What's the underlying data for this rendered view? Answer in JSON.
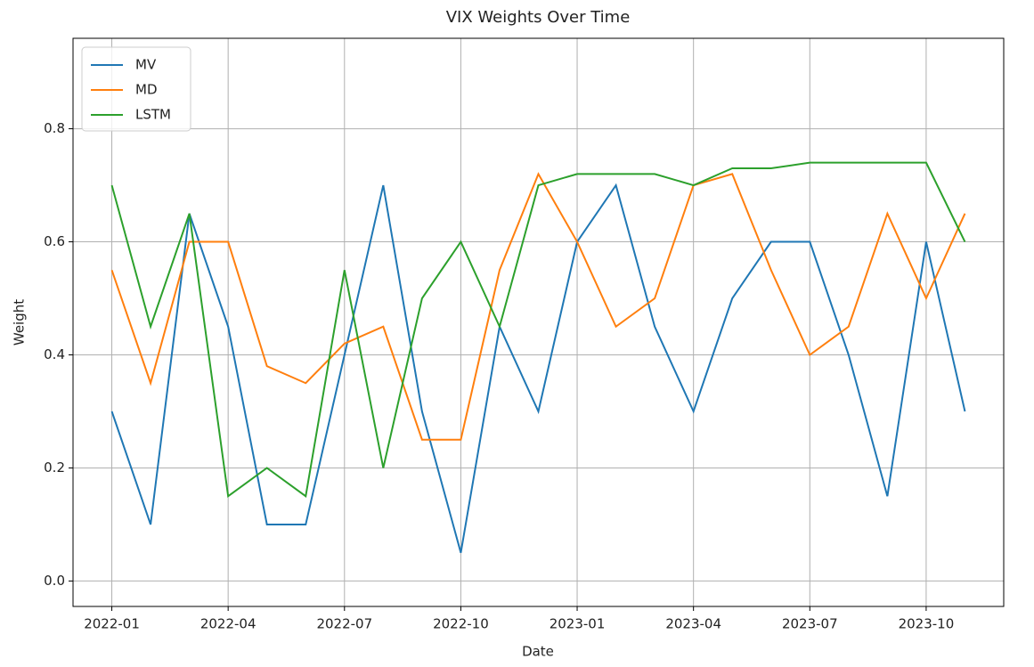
{
  "chart_data": {
    "type": "line",
    "title": "VIX Weights Over Time",
    "xlabel": "Date",
    "ylabel": "Weight",
    "x": [
      "2022-01",
      "2022-02",
      "2022-03",
      "2022-04",
      "2022-05",
      "2022-06",
      "2022-07",
      "2022-08",
      "2022-09",
      "2022-10",
      "2022-11",
      "2022-12",
      "2023-01",
      "2023-02",
      "2023-03",
      "2023-04",
      "2023-05",
      "2023-06",
      "2023-07",
      "2023-08",
      "2023-09",
      "2023-10",
      "2023-11"
    ],
    "series": [
      {
        "name": "MV",
        "color": "#1f77b4",
        "values": [
          0.3,
          0.1,
          0.65,
          0.45,
          0.1,
          0.1,
          0.4,
          0.7,
          0.3,
          0.05,
          0.45,
          0.3,
          0.6,
          0.7,
          0.45,
          0.3,
          0.5,
          0.6,
          0.6,
          0.4,
          0.15,
          0.6,
          0.3
        ]
      },
      {
        "name": "MD",
        "color": "#ff7f0e",
        "values": [
          0.55,
          0.35,
          0.6,
          0.6,
          0.38,
          0.35,
          0.42,
          0.45,
          0.25,
          0.25,
          0.55,
          0.72,
          0.6,
          0.45,
          0.5,
          0.7,
          0.72,
          0.55,
          0.4,
          0.45,
          0.65,
          0.5,
          0.65
        ]
      },
      {
        "name": "LSTM",
        "color": "#2ca02c",
        "values": [
          0.7,
          0.45,
          0.65,
          0.15,
          0.2,
          0.15,
          0.55,
          0.2,
          0.5,
          0.6,
          0.45,
          0.7,
          0.72,
          0.72,
          0.72,
          0.7,
          0.73,
          0.73,
          0.74,
          0.74,
          0.74,
          0.74,
          0.6
        ]
      }
    ],
    "xlim": [
      "2021-12",
      "2023-12"
    ],
    "xticks": [
      "2022-01",
      "2022-04",
      "2022-07",
      "2022-10",
      "2023-01",
      "2023-04",
      "2023-07",
      "2023-10"
    ],
    "ylim": [
      -0.045,
      0.96
    ],
    "yticks": [
      {
        "value": 0,
        "label": "0.0"
      },
      0.2,
      0.4,
      0.6,
      0.8
    ],
    "grid": true,
    "legend": "upper-left"
  }
}
